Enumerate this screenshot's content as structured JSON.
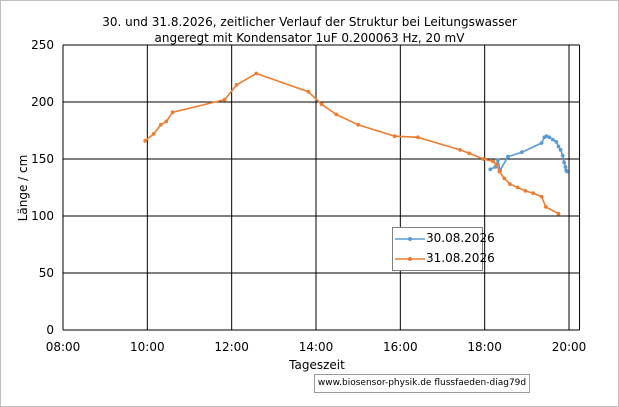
{
  "chart_data": {
    "type": "line",
    "title": "30. und 31.8.2026, zeitlicher Verlauf der Struktur bei Leitungswasser",
    "subtitle": "angeregt mit Kondensator 1uF  0.200063 Hz, 20 mV",
    "xlabel": "Tageszeit",
    "ylabel": "Länge / cm",
    "x_ticks": [
      "08:00",
      "10:00",
      "12:00",
      "14:00",
      "16:00",
      "18:00",
      "20:00"
    ],
    "y_ticks": [
      "0",
      "50",
      "100",
      "150",
      "200",
      "250"
    ],
    "xlim": [
      "08:00",
      "20:15"
    ],
    "ylim": [
      0,
      250
    ],
    "grid": true,
    "legend_position": "lower-right-inside",
    "series": [
      {
        "name": "30.08.2026",
        "color": "#5b9bd5",
        "x": [
          "18:08",
          "18:15",
          "18:19",
          "18:22",
          "18:33",
          "18:53",
          "19:21",
          "19:25",
          "19:28",
          "19:32",
          "19:37",
          "19:42",
          "19:45",
          "19:48",
          "19:51",
          "19:53",
          "19:55",
          "19:56",
          "19:57"
        ],
        "y": [
          141,
          143,
          149,
          140,
          152,
          156,
          164,
          169,
          170,
          169,
          167,
          165,
          161,
          158,
          153,
          147,
          143,
          140,
          139
        ]
      },
      {
        "name": "31.08.2026",
        "color": "#ed7d31",
        "x": [
          "09:57",
          "10:09",
          "10:19",
          "10:27",
          "10:36",
          "11:50",
          "12:07",
          "12:35",
          "13:49",
          "14:08",
          "14:29",
          "15:00",
          "15:52",
          "16:25",
          "17:25",
          "17:38",
          "17:58",
          "18:12",
          "18:17",
          "18:21",
          "18:28",
          "18:36",
          "18:47",
          "18:58",
          "19:09",
          "19:21",
          "19:27",
          "19:45"
        ],
        "y": [
          166,
          172,
          180,
          183,
          191,
          202,
          215,
          225,
          209,
          198,
          189,
          180,
          170,
          169,
          158,
          155,
          150,
          148,
          145,
          139,
          133,
          128,
          125,
          122,
          120,
          117,
          108,
          102
        ]
      }
    ]
  },
  "footer": {
    "credit": "www.biosensor-physik.de  flussfaeden-diag79d"
  }
}
